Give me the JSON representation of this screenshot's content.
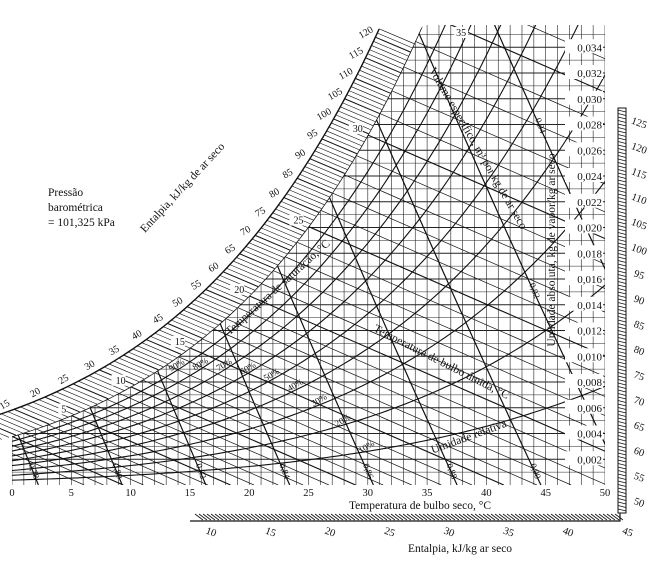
{
  "chart_data": {
    "type": "line",
    "chart_kind": "psychrometric chart",
    "pressure_note": [
      "Pressão",
      "barométrica",
      "= 101,325 kPa"
    ],
    "xlabel": "Temperatura de bulbo seco, °C",
    "ylabel": "Umidade absoluta, kg de vapor/kg ar seco",
    "xlim": [
      0,
      50
    ],
    "ylim": [
      0,
      0.035
    ],
    "x_ticks": [
      "0",
      "5",
      "10",
      "15",
      "20",
      "25",
      "30",
      "35",
      "40",
      "45",
      "50"
    ],
    "y_ticks": [
      "0,002",
      "0,004",
      "0,006",
      "0,008",
      "0,010",
      "0,012",
      "0,014",
      "0,016",
      "0,018",
      "0,020",
      "0,022",
      "0,024",
      "0,026",
      "0,028",
      "0,030",
      "0,032",
      "0,034"
    ],
    "grid": true,
    "saturation_label": "Temperatura de saturação, °C",
    "wet_bulb_label": "Temperatura de bulbo úmida, °C",
    "wet_bulb_values": [
      5,
      10,
      15,
      20,
      25,
      30,
      35
    ],
    "relative_humidity_label": "Umidade relativa",
    "relative_humidity_values": [
      10,
      20,
      30,
      40,
      50,
      60,
      70,
      80,
      90
    ],
    "relative_humidity_labels": [
      "10%",
      "20%",
      "30%",
      "40%",
      "50%",
      "60%",
      "70%",
      "80%",
      "90%"
    ],
    "specific_volume_label": "Volume específico, m³ por kg de ar seco",
    "specific_volume_values": [
      "0,78",
      "0,80",
      "0,82",
      "0,84",
      "0,86",
      "0,88",
      "0,90",
      "0,92",
      "0,94"
    ],
    "enthalpy_left_label": "Entalpia, kJ/kg de ar seco",
    "enthalpy_left_ticks": [
      "15",
      "20",
      "25",
      "30",
      "35",
      "40",
      "45",
      "50",
      "55",
      "60",
      "65",
      "70",
      "75",
      "80",
      "85",
      "90",
      "95",
      "100",
      "105",
      "110",
      "115",
      "120"
    ],
    "enthalpy_bottom_label": "Entalpia, kJ/kg ar seco",
    "enthalpy_bottom_ticks": [
      "10",
      "15",
      "20",
      "25",
      "30",
      "35",
      "40",
      "45"
    ],
    "enthalpy_right_ticks": [
      "125",
      "120",
      "115",
      "110",
      "105",
      "100",
      "95",
      "90",
      "85",
      "80",
      "75",
      "70",
      "65",
      "60",
      "55",
      "50"
    ],
    "line_color": "#111111"
  }
}
